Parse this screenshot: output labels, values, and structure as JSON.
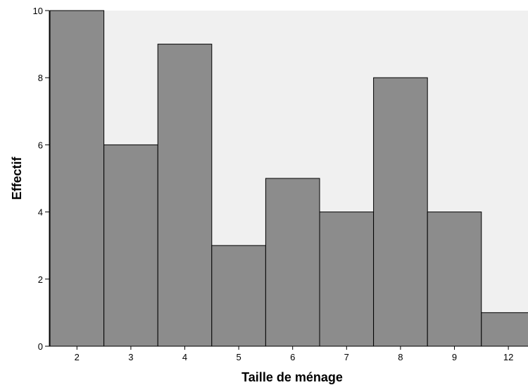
{
  "chart_data": {
    "type": "bar",
    "categories": [
      "2",
      "3",
      "4",
      "5",
      "6",
      "7",
      "8",
      "9",
      "12"
    ],
    "values": [
      10,
      6,
      9,
      3,
      5,
      4,
      8,
      4,
      1
    ],
    "title": "",
    "xlabel": "Taille de ménage",
    "ylabel": "Effectif",
    "ylim": [
      0,
      10
    ],
    "yticks": [
      0,
      2,
      4,
      6,
      8,
      10
    ],
    "grid": false,
    "bar_color": "#8c8c8c",
    "plot_background": "#f0f0f0"
  }
}
